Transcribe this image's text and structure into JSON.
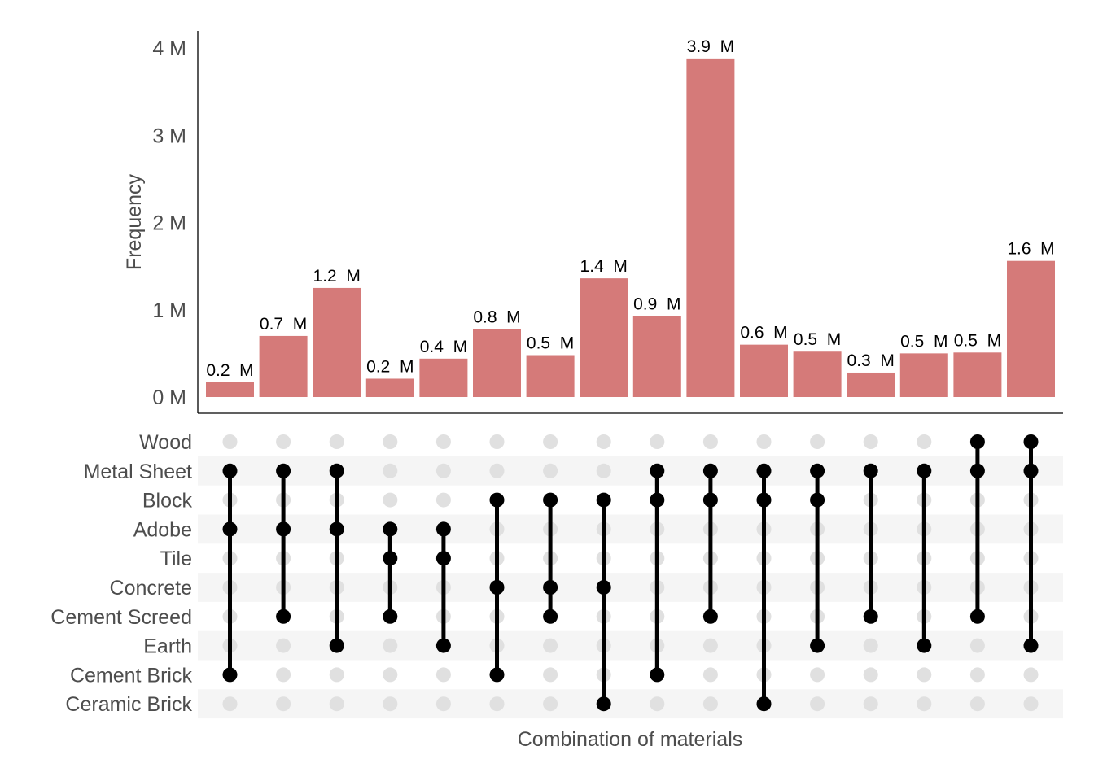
{
  "chart_data": {
    "type": "bar",
    "subtype": "upset",
    "ylabel": "Frequency",
    "xlabel": "Combination of materials",
    "ylim": [
      0,
      4.2
    ],
    "unit_suffix": "M",
    "yticks": [
      {
        "value": 0,
        "label": "0 M"
      },
      {
        "value": 1,
        "label": "1 M"
      },
      {
        "value": 2,
        "label": "2 M"
      },
      {
        "value": 3,
        "label": "3 M"
      },
      {
        "value": 4,
        "label": "4 M"
      }
    ],
    "sets": [
      "Wood",
      "Metal Sheet",
      "Block",
      "Adobe",
      "Tile",
      "Concrete",
      "Cement Screed",
      "Earth",
      "Cement Brick",
      "Ceramic Brick"
    ],
    "bar_color": "#d57a79",
    "matrix_active_color": "#000000",
    "matrix_inactive_color": "#e0e0e0",
    "stripe_color": "#f5f5f5",
    "combinations": [
      {
        "value": 0.17,
        "label": "0.2  M",
        "sets": [
          "Metal Sheet",
          "Adobe",
          "Cement Brick"
        ]
      },
      {
        "value": 0.7,
        "label": "0.7  M",
        "sets": [
          "Metal Sheet",
          "Adobe",
          "Cement Screed"
        ]
      },
      {
        "value": 1.25,
        "label": "1.2  M",
        "sets": [
          "Metal Sheet",
          "Adobe",
          "Earth"
        ]
      },
      {
        "value": 0.21,
        "label": "0.2  M",
        "sets": [
          "Adobe",
          "Tile",
          "Cement Screed"
        ]
      },
      {
        "value": 0.44,
        "label": "0.4  M",
        "sets": [
          "Adobe",
          "Tile",
          "Earth"
        ]
      },
      {
        "value": 0.78,
        "label": "0.8  M",
        "sets": [
          "Block",
          "Concrete",
          "Cement Brick"
        ]
      },
      {
        "value": 0.48,
        "label": "0.5  M",
        "sets": [
          "Block",
          "Concrete",
          "Cement Screed"
        ]
      },
      {
        "value": 1.36,
        "label": "1.4  M",
        "sets": [
          "Block",
          "Concrete",
          "Ceramic Brick"
        ]
      },
      {
        "value": 0.93,
        "label": "0.9  M",
        "sets": [
          "Metal Sheet",
          "Block",
          "Cement Brick"
        ]
      },
      {
        "value": 3.88,
        "label": "3.9  M",
        "sets": [
          "Metal Sheet",
          "Block",
          "Cement Screed"
        ]
      },
      {
        "value": 0.6,
        "label": "0.6  M",
        "sets": [
          "Metal Sheet",
          "Block",
          "Ceramic Brick"
        ]
      },
      {
        "value": 0.52,
        "label": "0.5  M",
        "sets": [
          "Metal Sheet",
          "Block",
          "Earth"
        ]
      },
      {
        "value": 0.28,
        "label": "0.3  M",
        "sets": [
          "Metal Sheet",
          "Cement Screed"
        ]
      },
      {
        "value": 0.5,
        "label": "0.5  M",
        "sets": [
          "Metal Sheet",
          "Earth"
        ]
      },
      {
        "value": 0.51,
        "label": "0.5  M",
        "sets": [
          "Wood",
          "Metal Sheet",
          "Cement Screed"
        ]
      },
      {
        "value": 1.56,
        "label": "1.6  M",
        "sets": [
          "Wood",
          "Metal Sheet",
          "Earth"
        ]
      }
    ]
  }
}
